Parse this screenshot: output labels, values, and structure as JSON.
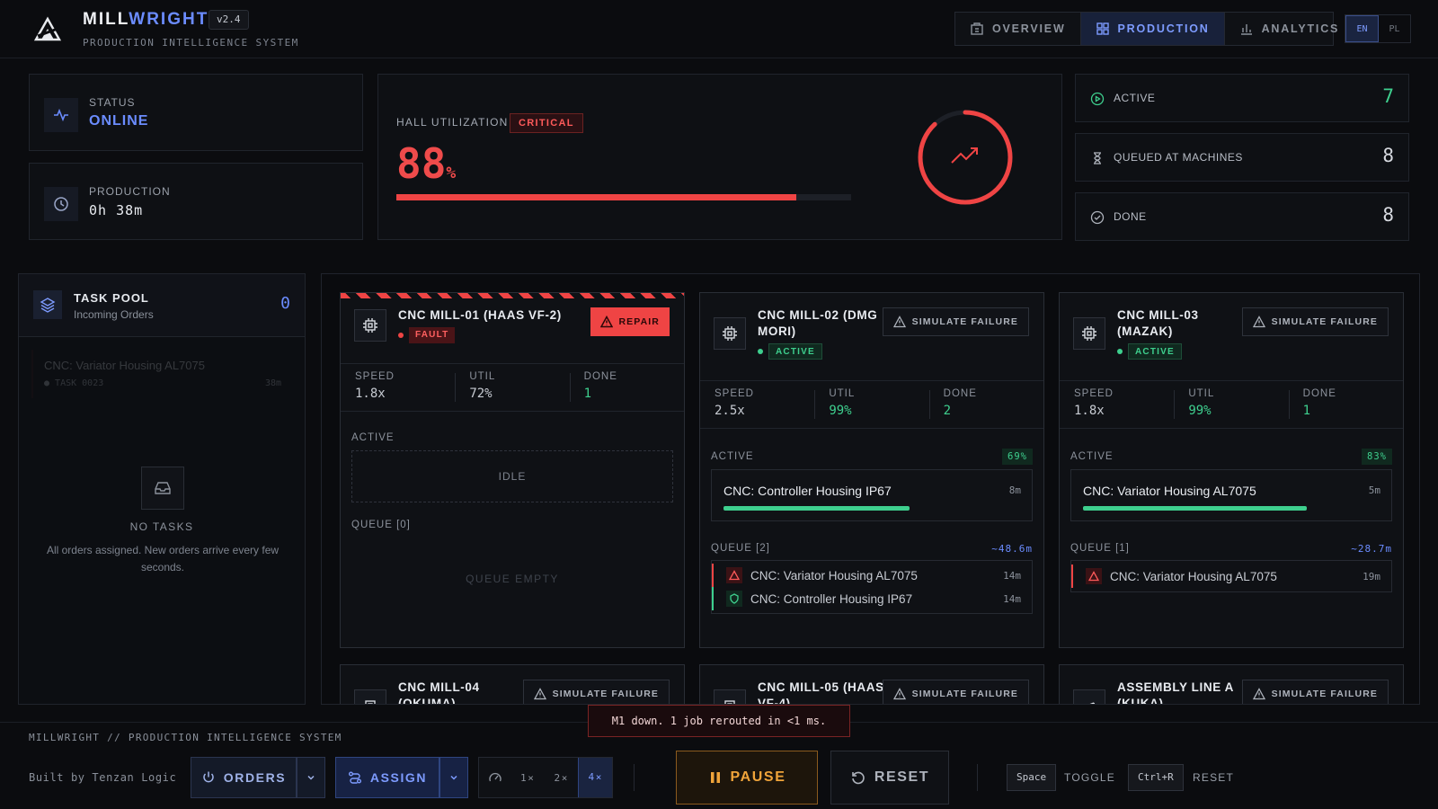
{
  "header": {
    "brand_a": "MILL",
    "brand_b": "WRIGHT",
    "version": "v2.4",
    "subtitle": "PRODUCTION INTELLIGENCE SYSTEM",
    "tabs": [
      {
        "label": "OVERVIEW",
        "icon": "building-icon"
      },
      {
        "label": "PRODUCTION",
        "icon": "grid-icon",
        "active": true
      },
      {
        "label": "ANALYTICS",
        "icon": "bar-chart-icon"
      }
    ],
    "languages": [
      "EN",
      "PL"
    ],
    "active_language": "EN"
  },
  "status": {
    "label": "STATUS",
    "value": "ONLINE",
    "color": "#6b8cff"
  },
  "production_time": {
    "label": "PRODUCTION",
    "value": "0h 38m"
  },
  "hall": {
    "label": "HALL UTILIZATION",
    "badge": "CRITICAL",
    "value": "88",
    "unit": "%",
    "utilization": 0.88,
    "color": "#ef4444"
  },
  "kpis": [
    {
      "label": "ACTIVE",
      "value": "7",
      "color": "#3ecf8e",
      "icon": "play-circle-icon"
    },
    {
      "label": "QUEUED AT MACHINES",
      "value": "8",
      "color": "#d7dae0",
      "icon": "hourglass-icon"
    },
    {
      "label": "DONE",
      "value": "8",
      "color": "#d7dae0",
      "icon": "check-circle-icon"
    }
  ],
  "pool": {
    "title": "TASK POOL",
    "subtitle": "Incoming Orders",
    "count": "0",
    "ghost_name": "CNC: Variator Housing AL7075",
    "ghost_id": "TASK 0023",
    "ghost_time": "38m",
    "empty_title": "NO TASKS",
    "empty_desc": "All orders assigned. New orders arrive every few seconds."
  },
  "labels": {
    "speed": "SPEED",
    "util": "UTIL",
    "done": "DONE",
    "active": "ACTIVE",
    "simulate": "SIMULATE FAILURE",
    "repair": "REPAIR",
    "idle": "IDLE",
    "queue_empty": "QUEUE EMPTY"
  },
  "machines": [
    {
      "name": "CNC MILL-01 (HAAS VF-2)",
      "status": "FAULT",
      "speed": "1.8x",
      "util": "72%",
      "done": "1",
      "queue_label": "QUEUE [0]"
    },
    {
      "name": "CNC MILL-02 (DMG MORI)",
      "status": "ACTIVE",
      "speed": "2.5x",
      "util": "99%",
      "done": "2",
      "active_pct": "69%",
      "progress": 0.69,
      "job": "CNC: Controller Housing IP67",
      "job_time": "8m",
      "queue_label": "QUEUE [2]",
      "queue_eta": "~48.6m",
      "queue": [
        {
          "name": "CNC: Variator Housing AL7075",
          "time": "14m",
          "kind": "alert"
        },
        {
          "name": "CNC: Controller Housing IP67",
          "time": "14m",
          "kind": "ok"
        }
      ]
    },
    {
      "name": "CNC MILL-03 (MAZAK)",
      "status": "ACTIVE",
      "speed": "1.8x",
      "util": "99%",
      "done": "1",
      "active_pct": "83%",
      "progress": 0.83,
      "job": "CNC: Variator Housing AL7075",
      "job_time": "5m",
      "queue_label": "QUEUE [1]",
      "queue_eta": "~28.7m",
      "queue": [
        {
          "name": "CNC: Variator Housing AL7075",
          "time": "19m",
          "kind": "alert"
        }
      ]
    },
    {
      "name": "CNC MILL-04 (OKUMA)"
    },
    {
      "name": "CNC MILL-05 (HAAS VF-4)"
    },
    {
      "name": "ASSEMBLY LINE A (KUKA)"
    }
  ],
  "toast": "M1 down. 1 job rerouted in <1 ms.",
  "footer": {
    "title": "MILLWRIGHT // PRODUCTION INTELLIGENCE SYSTEM",
    "credit": "Built by Tenzan Logic",
    "orders": "ORDERS",
    "assign": "ASSIGN",
    "speeds": [
      "1×",
      "2×",
      "4×"
    ],
    "active_speed": "4×",
    "pause": "PAUSE",
    "reset": "RESET",
    "shortcuts": [
      {
        "key": "Space",
        "label": "TOGGLE"
      },
      {
        "key": "Ctrl+R",
        "label": "RESET"
      }
    ]
  }
}
